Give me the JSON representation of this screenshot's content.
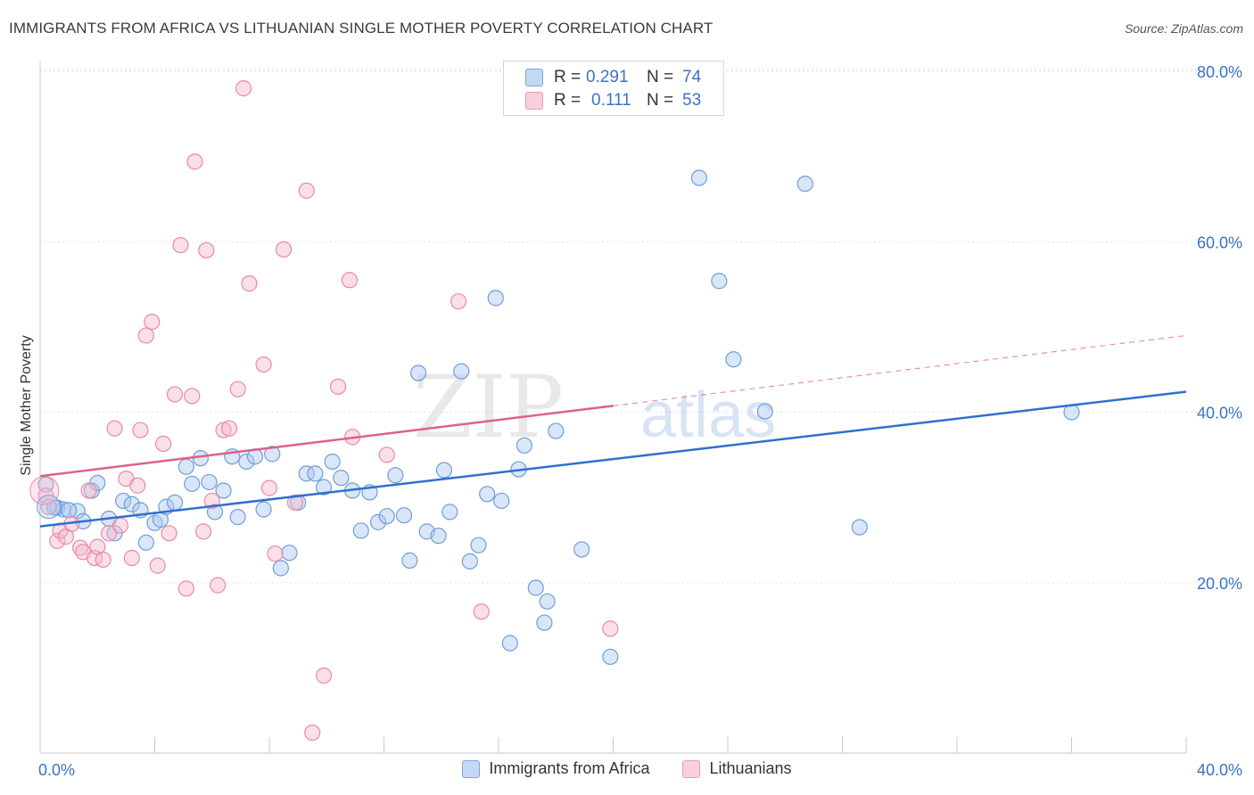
{
  "header": {
    "title": "IMMIGRANTS FROM AFRICA VS LITHUANIAN SINGLE MOTHER POVERTY CORRELATION CHART",
    "source": "Source: ZipAtlas.com"
  },
  "watermark": {
    "zip": "ZIP",
    "atlas": "atlas"
  },
  "colors": {
    "blue_fill": "#aac8f0",
    "blue_stroke": "#6f9ed8",
    "blue_line": "#2f6fd0",
    "pink_fill": "#f5b8cc",
    "pink_stroke": "#e88aa8",
    "pink_line": "#e0608a",
    "tick_label": "#3a72c8",
    "grid": "#e2e2e2"
  },
  "correlation_legend": {
    "rows": [
      {
        "r_label": "R =",
        "r_value": "0.291",
        "n_label": "N =",
        "n_value": "74",
        "series": "blue"
      },
      {
        "r_label": "R =",
        "r_value": "0.111",
        "n_label": "N =",
        "n_value": "53",
        "series": "pink"
      }
    ]
  },
  "chart_data": {
    "type": "scatter",
    "title": "IMMIGRANTS FROM AFRICA VS LITHUANIAN SINGLE MOTHER POVERTY CORRELATION CHART",
    "xlabel": "",
    "ylabel": "Single Mother Poverty",
    "xlim": [
      0,
      40
    ],
    "ylim": [
      0,
      80
    ],
    "x_tick_labels": [
      "0.0%",
      "40.0%"
    ],
    "y_tick_labels": [
      "20.0%",
      "40.0%",
      "60.0%",
      "80.0%"
    ],
    "y_ticks": [
      20,
      40,
      60,
      80
    ],
    "grid": true,
    "legend_position": "bottom",
    "series": [
      {
        "name": "Immigrants from Africa",
        "color": "#aac8f0",
        "trend": {
          "x": [
            0,
            40
          ],
          "y": [
            26.6,
            42.4
          ],
          "dashed_from": null
        },
        "points": [
          [
            0.2,
            31.5
          ],
          [
            0.6,
            28.8
          ],
          [
            0.8,
            28.6
          ],
          [
            1.3,
            28.4
          ],
          [
            1.5,
            27.2
          ],
          [
            1.8,
            30.8
          ],
          [
            2.0,
            31.7
          ],
          [
            2.4,
            27.5
          ],
          [
            2.6,
            25.8
          ],
          [
            2.9,
            29.6
          ],
          [
            3.2,
            29.2
          ],
          [
            3.5,
            28.5
          ],
          [
            3.7,
            24.7
          ],
          [
            4.0,
            27.0
          ],
          [
            4.2,
            27.4
          ],
          [
            4.4,
            28.9
          ],
          [
            4.7,
            29.4
          ],
          [
            5.1,
            33.6
          ],
          [
            5.3,
            31.6
          ],
          [
            5.6,
            34.6
          ],
          [
            5.9,
            31.8
          ],
          [
            6.1,
            28.3
          ],
          [
            6.4,
            30.8
          ],
          [
            6.7,
            34.8
          ],
          [
            6.9,
            27.7
          ],
          [
            7.2,
            34.2
          ],
          [
            7.5,
            34.8
          ],
          [
            7.8,
            28.6
          ],
          [
            8.1,
            35.1
          ],
          [
            8.4,
            21.7
          ],
          [
            8.7,
            23.5
          ],
          [
            9.0,
            29.4
          ],
          [
            9.3,
            32.8
          ],
          [
            9.6,
            32.8
          ],
          [
            9.9,
            31.2
          ],
          [
            10.2,
            34.2
          ],
          [
            10.5,
            32.3
          ],
          [
            10.9,
            30.8
          ],
          [
            11.2,
            26.1
          ],
          [
            11.5,
            30.6
          ],
          [
            11.8,
            27.1
          ],
          [
            12.1,
            27.8
          ],
          [
            12.4,
            32.6
          ],
          [
            12.7,
            27.9
          ],
          [
            12.9,
            22.6
          ],
          [
            13.2,
            44.6
          ],
          [
            13.5,
            26.0
          ],
          [
            13.9,
            25.5
          ],
          [
            14.1,
            33.2
          ],
          [
            14.3,
            28.3
          ],
          [
            14.7,
            44.8
          ],
          [
            15.0,
            22.5
          ],
          [
            15.3,
            24.4
          ],
          [
            15.6,
            30.4
          ],
          [
            15.9,
            53.4
          ],
          [
            16.1,
            29.6
          ],
          [
            16.4,
            12.9
          ],
          [
            16.7,
            33.3
          ],
          [
            16.9,
            36.1
          ],
          [
            17.3,
            19.4
          ],
          [
            17.6,
            15.3
          ],
          [
            17.7,
            17.8
          ],
          [
            18.0,
            37.8
          ],
          [
            18.9,
            23.9
          ],
          [
            19.9,
            11.3
          ],
          [
            23.0,
            67.5
          ],
          [
            23.7,
            55.4
          ],
          [
            24.2,
            46.2
          ],
          [
            25.3,
            40.1
          ],
          [
            26.7,
            66.8
          ],
          [
            28.6,
            26.5
          ],
          [
            36.0,
            40.0
          ],
          [
            0.5,
            28.8
          ],
          [
            1.0,
            28.5
          ]
        ]
      },
      {
        "name": "Lithuanians",
        "color": "#f5b8cc",
        "trend": {
          "x": [
            0,
            40
          ],
          "y": [
            32.5,
            49.0
          ],
          "dashed_from": 20
        },
        "points": [
          [
            0.2,
            30.2
          ],
          [
            0.3,
            28.9
          ],
          [
            0.6,
            24.9
          ],
          [
            0.7,
            26.1
          ],
          [
            0.9,
            25.4
          ],
          [
            1.1,
            26.9
          ],
          [
            1.4,
            24.1
          ],
          [
            1.5,
            23.6
          ],
          [
            1.7,
            30.8
          ],
          [
            1.9,
            22.9
          ],
          [
            2.0,
            24.2
          ],
          [
            2.2,
            22.7
          ],
          [
            2.4,
            25.8
          ],
          [
            2.6,
            38.1
          ],
          [
            2.8,
            26.7
          ],
          [
            3.0,
            32.2
          ],
          [
            3.2,
            22.9
          ],
          [
            3.4,
            31.4
          ],
          [
            3.5,
            37.9
          ],
          [
            3.7,
            49.0
          ],
          [
            3.9,
            50.6
          ],
          [
            4.1,
            22.0
          ],
          [
            4.3,
            36.3
          ],
          [
            4.5,
            25.8
          ],
          [
            4.7,
            42.1
          ],
          [
            4.9,
            59.6
          ],
          [
            5.1,
            19.3
          ],
          [
            5.3,
            41.9
          ],
          [
            5.4,
            69.4
          ],
          [
            5.7,
            26.0
          ],
          [
            5.8,
            59.0
          ],
          [
            6.0,
            29.6
          ],
          [
            6.2,
            19.7
          ],
          [
            6.4,
            37.9
          ],
          [
            6.6,
            38.1
          ],
          [
            6.9,
            42.7
          ],
          [
            7.1,
            78.0
          ],
          [
            7.3,
            55.1
          ],
          [
            7.8,
            45.6
          ],
          [
            8.0,
            31.1
          ],
          [
            8.2,
            23.4
          ],
          [
            8.5,
            59.1
          ],
          [
            8.9,
            29.4
          ],
          [
            9.3,
            66.0
          ],
          [
            9.5,
            2.4
          ],
          [
            9.9,
            9.1
          ],
          [
            10.4,
            43.0
          ],
          [
            10.8,
            55.5
          ],
          [
            10.9,
            37.1
          ],
          [
            12.1,
            35.0
          ],
          [
            14.6,
            53.0
          ],
          [
            15.4,
            16.6
          ],
          [
            19.9,
            14.6
          ]
        ]
      }
    ]
  },
  "bottom_legend": {
    "items": [
      {
        "label": "Immigrants from Africa",
        "series": "blue"
      },
      {
        "label": "Lithuanians",
        "series": "pink"
      }
    ]
  }
}
